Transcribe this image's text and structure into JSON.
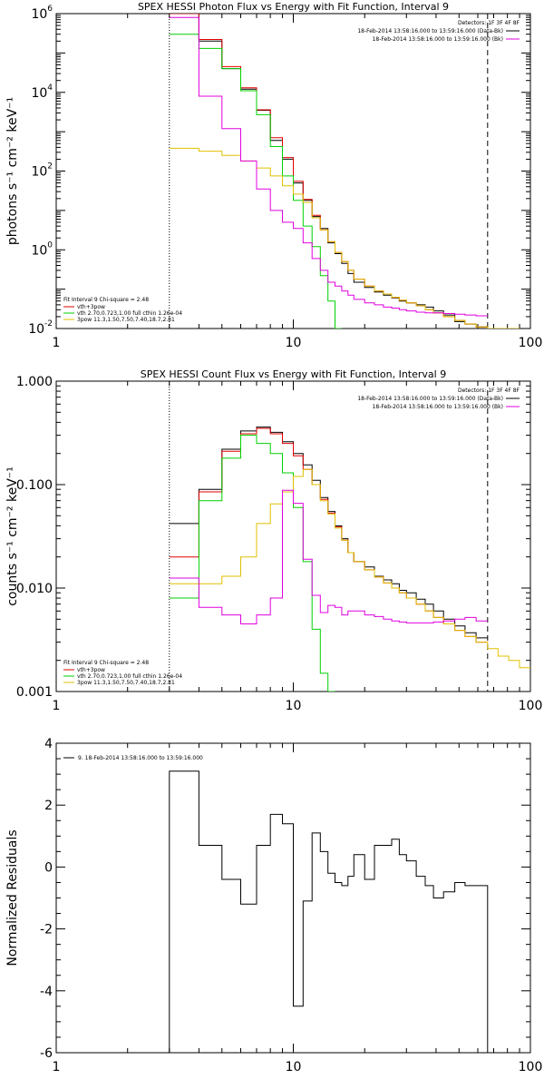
{
  "chart_data": [
    {
      "type": "line",
      "title": "SPEX HESSI Photon Flux vs Energy with Fit Function, Interval 9",
      "ylabel": "photons s⁻¹ cm⁻² keV⁻¹",
      "xlabel": "",
      "x_scale": "log",
      "y_scale": "log",
      "xlim": [
        1,
        100
      ],
      "ylim": [
        0.01,
        1000000
      ],
      "x_tick_labels": [
        "1",
        "10",
        "100"
      ],
      "y_tick_labels": [
        {
          "base": "10",
          "exp": "6"
        },
        {
          "base": "10",
          "exp": "4"
        },
        {
          "base": "10",
          "exp": "2"
        },
        {
          "base": "10",
          "exp": "0"
        },
        {
          "base": "10",
          "exp": "-2"
        }
      ],
      "y_tick_values": [
        1000000,
        10000,
        100,
        1,
        0.01
      ],
      "grid": false,
      "vlines": [
        {
          "x": 3.0,
          "style": "dotted",
          "color": "#000000"
        },
        {
          "x": 66,
          "style": "dashed",
          "color": "#000000"
        }
      ],
      "legend_right": {
        "header": "Detectors: 1F 3F 4F 8F",
        "lines": [
          {
            "text": "18-Feb-2014 13:58:16.000 to 13:59:16.000 (Data-Bk)",
            "color": "#000000"
          },
          {
            "text": "18-Feb-2014 13:58:16.000 to 13:59:16.000 (Bk)",
            "color": "#e000e0"
          }
        ]
      },
      "legend_left": {
        "header": "Fit Interval 9   Chi-square = 2.48",
        "lines": [
          {
            "text": "vth+3pow",
            "color": "#e00000"
          },
          {
            "text": "vth 2.70,0.723,1.00  full cthin 1.26e-04",
            "color": "#00d000"
          },
          {
            "text": "3pow 11.3,1.50,7.50,7.40,18.7,2.81",
            "color": "#e0c000"
          }
        ]
      },
      "series": [
        {
          "name": "Data-Bk",
          "color": "#000000",
          "edges": [
            3,
            4,
            5,
            6,
            7,
            8,
            9,
            10,
            11,
            12,
            13,
            14,
            15,
            16,
            17,
            18,
            20,
            22,
            24,
            26,
            28,
            30,
            33,
            36,
            39,
            43,
            48,
            53,
            59,
            66
          ],
          "values": [
            1000000,
            200000,
            40000,
            12000,
            3500,
            600,
            200,
            50,
            18,
            7,
            3.5,
            1.5,
            0.8,
            0.45,
            0.25,
            0.15,
            0.11,
            0.085,
            0.07,
            0.06,
            0.05,
            0.045,
            0.04,
            0.035,
            0.028,
            0.022,
            0.015,
            0.013,
            0.011
          ]
        },
        {
          "name": "vth+3pow",
          "color": "#e00000",
          "edges": [
            3,
            4,
            5,
            6,
            7,
            8,
            9,
            10,
            11,
            12,
            13,
            14,
            15,
            16,
            17,
            18,
            20,
            22,
            24,
            26,
            28,
            30,
            33,
            36,
            39,
            43,
            48,
            53,
            59,
            66,
            73,
            81,
            90
          ],
          "values": [
            1000000,
            220000,
            45000,
            13000,
            3600,
            700,
            220,
            55,
            19,
            7.5,
            3.2,
            1.6,
            0.85,
            0.5,
            0.3,
            0.18,
            0.12,
            0.09,
            0.075,
            0.062,
            0.052,
            0.045,
            0.038,
            0.03,
            0.025,
            0.02,
            0.016,
            0.013,
            0.011,
            0.0095,
            0.0085,
            0.0075
          ]
        },
        {
          "name": "vth",
          "color": "#00d000",
          "edges": [
            3,
            4,
            5,
            6,
            7,
            8,
            9,
            10,
            11,
            12,
            13,
            14,
            15,
            16
          ],
          "values": [
            300000,
            130000,
            40000,
            11000,
            2700,
            420,
            75,
            18,
            4,
            1.2,
            0.22,
            0.05,
            0.009
          ]
        },
        {
          "name": "3pow",
          "color": "#e0c000",
          "edges": [
            3,
            4,
            5,
            6,
            7,
            8,
            9,
            10,
            11,
            12,
            13,
            14,
            15,
            16,
            17,
            18,
            20,
            22,
            24,
            26,
            28,
            30,
            33,
            36,
            39,
            43,
            48,
            53,
            59,
            66,
            73,
            81,
            90
          ],
          "values": [
            380,
            320,
            250,
            180,
            120,
            75,
            42,
            26,
            16,
            6.5,
            3.2,
            1.6,
            0.85,
            0.5,
            0.3,
            0.18,
            0.12,
            0.09,
            0.075,
            0.062,
            0.052,
            0.045,
            0.038,
            0.03,
            0.025,
            0.02,
            0.016,
            0.013,
            0.011,
            0.0095,
            0.0085,
            0.0075
          ]
        },
        {
          "name": "Bk",
          "color": "#e000e0",
          "edges": [
            3,
            4,
            5,
            6,
            7,
            8,
            9,
            10,
            11,
            12,
            13,
            14,
            15,
            16,
            17,
            18,
            20,
            22,
            24,
            26,
            28,
            30,
            33,
            36,
            39,
            43,
            48,
            53,
            59,
            66
          ],
          "values": [
            800000,
            8000,
            1200,
            180,
            35,
            10,
            5,
            3.5,
            1.5,
            0.6,
            0.3,
            0.15,
            0.12,
            0.09,
            0.07,
            0.055,
            0.045,
            0.04,
            0.035,
            0.033,
            0.03,
            0.028,
            0.026,
            0.025,
            0.025,
            0.024,
            0.023,
            0.022,
            0.021
          ]
        }
      ]
    },
    {
      "type": "line",
      "title": "SPEX HESSI Count Flux vs Energy with Fit Function, Interval 9",
      "ylabel": "counts s⁻¹ cm⁻² keV⁻¹",
      "xlabel": "",
      "x_scale": "log",
      "y_scale": "log",
      "xlim": [
        1,
        100
      ],
      "ylim": [
        0.001,
        1
      ],
      "x_tick_labels": [
        "1",
        "10",
        "100"
      ],
      "y_tick_labels": [
        "1.000",
        "0.100",
        "0.010",
        "0.001"
      ],
      "y_tick_values": [
        1,
        0.1,
        0.01,
        0.001
      ],
      "grid": false,
      "vlines": [
        {
          "x": 3.0,
          "style": "dotted",
          "color": "#000000"
        },
        {
          "x": 66,
          "style": "dashed",
          "color": "#000000"
        }
      ],
      "legend_right": {
        "header": "Detectors: 1F 3F 4F 8F",
        "lines": [
          {
            "text": "18-Feb-2014 13:58:16.000 to 13:59:16.000 (Data-Bk)",
            "color": "#000000"
          },
          {
            "text": "18-Feb-2014 13:58:16.000 to 13:59:16.000 (Bk)",
            "color": "#e000e0"
          }
        ]
      },
      "legend_left": {
        "header": "Fit Interval 9   Chi-square = 2.48",
        "lines": [
          {
            "text": "vth+3pow",
            "color": "#e00000"
          },
          {
            "text": "vth 2.70,0.723,1.00  full cthin 1.26e-04",
            "color": "#00d000"
          },
          {
            "text": "3pow 11.3,1.50,7.50,7.40,18.7,2.81",
            "color": "#e0c000"
          }
        ]
      },
      "series": [
        {
          "name": "Data-Bk",
          "color": "#000000",
          "edges": [
            3,
            4,
            5,
            6,
            7,
            8,
            9,
            10,
            11,
            12,
            13,
            14,
            15,
            16,
            17,
            18,
            20,
            22,
            24,
            26,
            28,
            30,
            33,
            36,
            39,
            43,
            48,
            53,
            59,
            66
          ],
          "values": [
            0.042,
            0.09,
            0.22,
            0.33,
            0.36,
            0.32,
            0.26,
            0.2,
            0.155,
            0.11,
            0.075,
            0.055,
            0.04,
            0.03,
            0.022,
            0.018,
            0.016,
            0.013,
            0.012,
            0.011,
            0.0095,
            0.009,
            0.0078,
            0.007,
            0.006,
            0.005,
            0.0043,
            0.0037,
            0.0033
          ]
        },
        {
          "name": "vth+3pow",
          "color": "#e00000",
          "edges": [
            3,
            4,
            5,
            6,
            7,
            8,
            9,
            10,
            11,
            12,
            13,
            14,
            15,
            16,
            17,
            18,
            20,
            22,
            24,
            26,
            28,
            30,
            33,
            36,
            39,
            43,
            48,
            53,
            59,
            66
          ],
          "values": [
            0.02,
            0.085,
            0.21,
            0.31,
            0.35,
            0.31,
            0.25,
            0.19,
            0.14,
            0.1,
            0.072,
            0.053,
            0.039,
            0.029,
            0.022,
            0.018,
            0.015,
            0.0128,
            0.0112,
            0.01,
            0.009,
            0.008,
            0.007,
            0.006,
            0.0052,
            0.0045,
            0.0039,
            0.0034,
            0.003
          ]
        },
        {
          "name": "vth",
          "color": "#00d000",
          "edges": [
            3,
            4,
            5,
            6,
            7,
            8,
            9,
            10,
            11,
            12,
            13,
            14,
            15
          ],
          "values": [
            0.008,
            0.07,
            0.18,
            0.3,
            0.25,
            0.2,
            0.13,
            0.06,
            0.018,
            0.004,
            0.0015,
            0.0009
          ]
        },
        {
          "name": "3pow",
          "color": "#e0c000",
          "edges": [
            3,
            4,
            5,
            6,
            7,
            8,
            9,
            10,
            11,
            12,
            13,
            14,
            15,
            16,
            17,
            18,
            20,
            22,
            24,
            26,
            28,
            30,
            33,
            36,
            39,
            43,
            48,
            53,
            59,
            66,
            73,
            81,
            90,
            100
          ],
          "values": [
            0.011,
            0.011,
            0.013,
            0.02,
            0.042,
            0.065,
            0.085,
            0.12,
            0.14,
            0.1,
            0.07,
            0.052,
            0.038,
            0.029,
            0.022,
            0.018,
            0.015,
            0.0128,
            0.0112,
            0.01,
            0.009,
            0.008,
            0.007,
            0.006,
            0.0052,
            0.0045,
            0.0039,
            0.0034,
            0.003,
            0.0026,
            0.0022,
            0.002,
            0.0017
          ]
        },
        {
          "name": "Bk",
          "color": "#e000e0",
          "edges": [
            3,
            4,
            5,
            6,
            7,
            8,
            9,
            10,
            11,
            12,
            13,
            14,
            15,
            16,
            17,
            18,
            20,
            22,
            24,
            26,
            28,
            30,
            33,
            36,
            39,
            43,
            48,
            53,
            59,
            66
          ],
          "values": [
            0.0125,
            0.0065,
            0.0055,
            0.0045,
            0.0055,
            0.008,
            0.088,
            0.066,
            0.019,
            0.0085,
            0.0058,
            0.0068,
            0.0065,
            0.0055,
            0.006,
            0.006,
            0.0055,
            0.0053,
            0.005,
            0.0048,
            0.0047,
            0.0046,
            0.0046,
            0.0046,
            0.0047,
            0.0048,
            0.005,
            0.0052,
            0.0048
          ]
        }
      ]
    },
    {
      "type": "line",
      "title": "",
      "ylabel": "Normalized Residuals",
      "xlabel": "",
      "x_scale": "log",
      "y_scale": "linear",
      "xlim": [
        1,
        100
      ],
      "ylim": [
        -6,
        4
      ],
      "x_tick_labels": [
        "1",
        "10",
        "100"
      ],
      "y_tick_values": [
        4,
        2,
        0,
        -2,
        -4,
        -6
      ],
      "y_tick_labels": [
        "4",
        "2",
        "0",
        "-2",
        "-4",
        "-6"
      ],
      "grid": false,
      "legend_left": {
        "header": "",
        "lines": [
          {
            "text": "9. 18-Feb-2014 13:58:16.000 to 13:59:16.000",
            "color": "#000000"
          }
        ]
      },
      "series": [
        {
          "name": "9. 18-Feb-2014 13:58:16.000 to 13:59:16.000",
          "color": "#000000",
          "edges": [
            3,
            4,
            5,
            6,
            7,
            8,
            9,
            10,
            11,
            12,
            13,
            14,
            15,
            16,
            17,
            18,
            20,
            22,
            24,
            26,
            28,
            30,
            33,
            36,
            39,
            43,
            48,
            53,
            59,
            66
          ],
          "values": [
            3.1,
            0.7,
            -0.4,
            -1.2,
            0.7,
            1.7,
            1.4,
            -4.5,
            -1.1,
            1.1,
            0.5,
            -0.2,
            -0.5,
            -0.6,
            -0.3,
            0.4,
            -0.4,
            0.7,
            0.7,
            0.9,
            0.4,
            0.2,
            -0.3,
            -0.6,
            -1.0,
            -0.8,
            -0.5,
            -0.6,
            -0.6
          ],
          "drop_to_bottom": true
        }
      ]
    }
  ]
}
